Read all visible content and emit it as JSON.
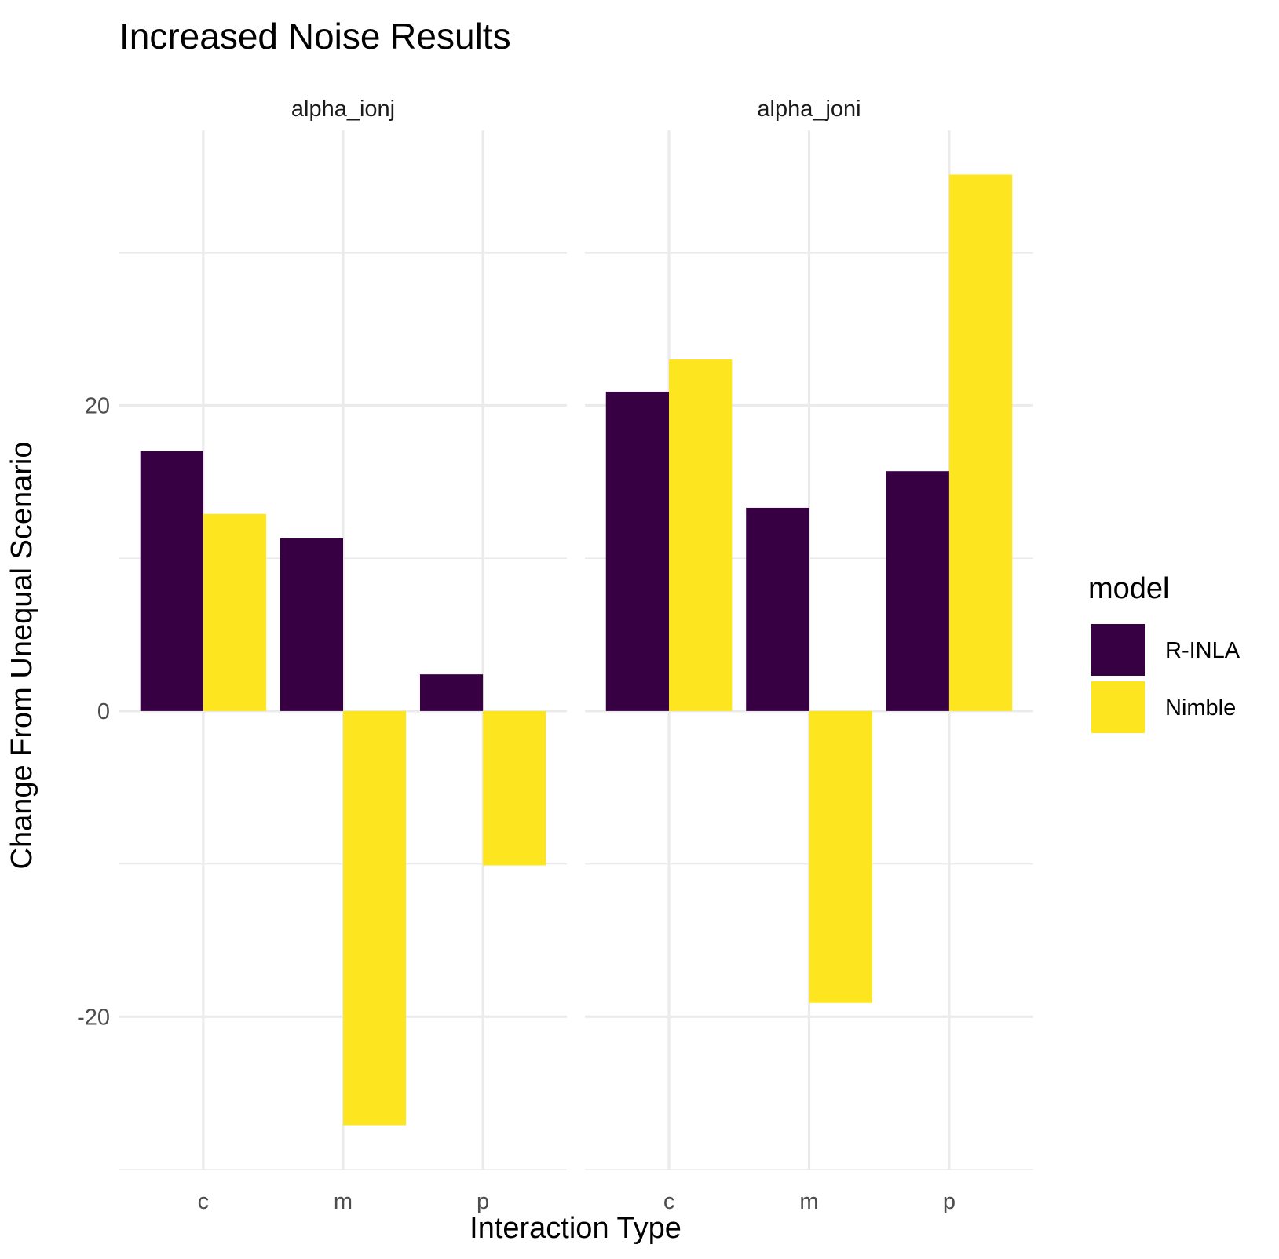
{
  "chart_data": {
    "type": "bar",
    "title": "Increased Noise Results",
    "xlabel": "Interaction Type",
    "ylabel": "Change From Unequal Scenario",
    "categories": [
      "c",
      "m",
      "p"
    ],
    "facets": [
      {
        "name": "alpha_ionj",
        "series": [
          {
            "name": "R-INLA",
            "values": [
              17.0,
              11.3,
              2.4
            ]
          },
          {
            "name": "Nimble",
            "values": [
              12.9,
              -27.1,
              -10.1
            ]
          }
        ]
      },
      {
        "name": "alpha_joni",
        "series": [
          {
            "name": "R-INLA",
            "values": [
              20.9,
              13.3,
              15.7
            ]
          },
          {
            "name": "Nimble",
            "values": [
              23.0,
              -19.1,
              35.1
            ]
          }
        ]
      }
    ],
    "ylim": [
      -30,
      38
    ],
    "yticks": [
      -20,
      0,
      20
    ],
    "legend": {
      "title": "model",
      "position": "right",
      "entries": [
        {
          "name": "R-INLA",
          "color": "#360043"
        },
        {
          "name": "Nimble",
          "color": "#fde51f"
        }
      ]
    },
    "grid": true
  }
}
